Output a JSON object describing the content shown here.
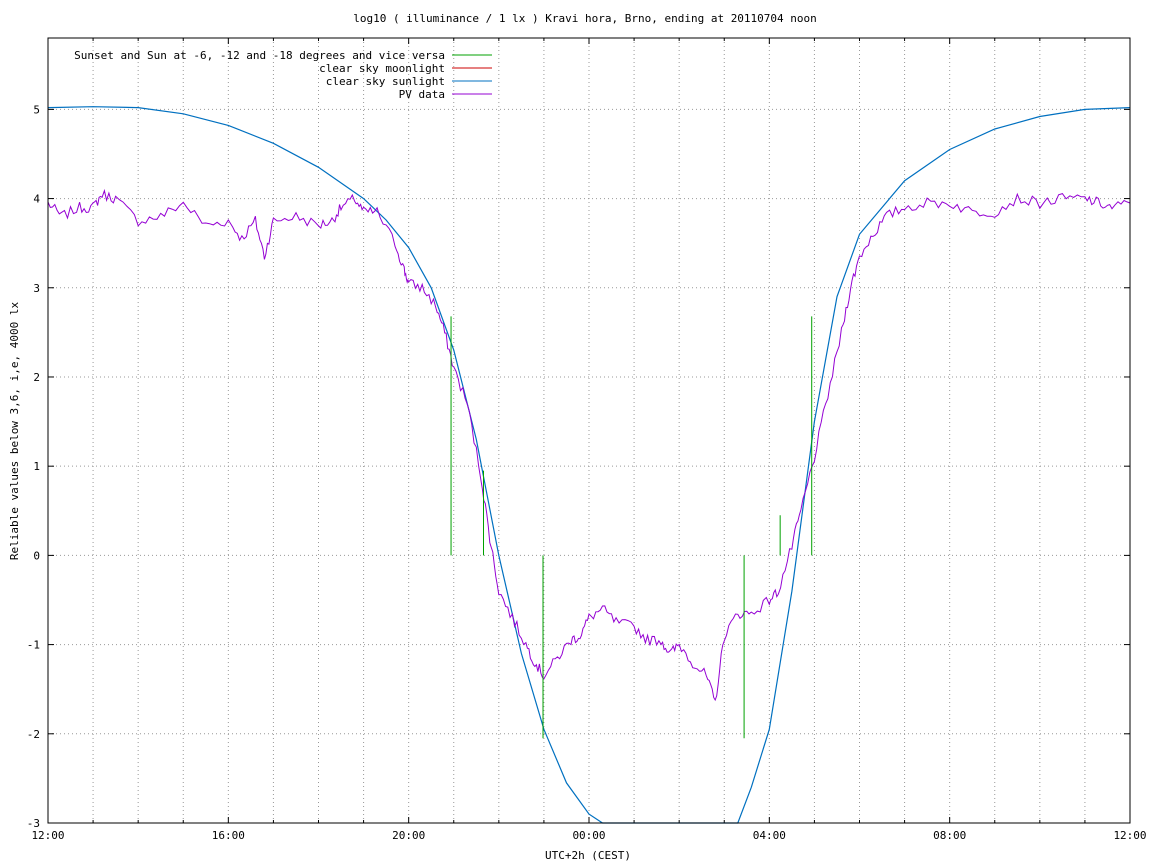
{
  "chart_data": {
    "type": "line",
    "title": "log10 ( illuminance / 1 lx ) Kravi hora, Brno, ending at 20110704 noon",
    "xlabel": "UTC+2h (CEST)",
    "ylabel": "Reliable values below 3,6, i,e, 4000 lx",
    "xlim_hours": [
      12,
      36
    ],
    "ylim": [
      -3,
      5.8
    ],
    "grid": true,
    "legend_position": "top-left",
    "x_ticks": [
      {
        "hour": 12,
        "label": "12:00"
      },
      {
        "hour": 16,
        "label": "16:00"
      },
      {
        "hour": 20,
        "label": "20:00"
      },
      {
        "hour": 24,
        "label": "00:00"
      },
      {
        "hour": 28,
        "label": "04:00"
      },
      {
        "hour": 32,
        "label": "08:00"
      },
      {
        "hour": 36,
        "label": "12:00"
      }
    ],
    "y_ticks": [
      {
        "value": -3,
        "label": "-3"
      },
      {
        "value": -2,
        "label": "-2"
      },
      {
        "value": -1,
        "label": "-1"
      },
      {
        "value": 0,
        "label": "0"
      },
      {
        "value": 1,
        "label": "1"
      },
      {
        "value": 2,
        "label": "2"
      },
      {
        "value": 3,
        "label": "3"
      },
      {
        "value": 4,
        "label": "4"
      },
      {
        "value": 5,
        "label": "5"
      }
    ],
    "series": [
      {
        "name": "Sunset and Sun at -6, -12 and -18 degrees and vice versa",
        "color": "#00a000",
        "style": "impulses",
        "points": [
          {
            "x": 20.94,
            "y0": 0,
            "y1": 2.68
          },
          {
            "x": 21.66,
            "y0": 0,
            "y1": 0.95
          },
          {
            "x": 22.98,
            "y0": -2.05,
            "y1": 0
          },
          {
            "x": 27.44,
            "y0": -2.05,
            "y1": 0
          },
          {
            "x": 28.24,
            "y0": 0,
            "y1": 0.45
          },
          {
            "x": 28.94,
            "y0": 0,
            "y1": 2.68
          }
        ]
      },
      {
        "name": "clear sky moonlight",
        "color": "#cc0000",
        "style": "line",
        "x": [],
        "y": []
      },
      {
        "name": "clear sky sunlight",
        "color": "#0070c0",
        "style": "line",
        "x": [
          12,
          13,
          14,
          15,
          16,
          17,
          18,
          19,
          19.5,
          20,
          20.5,
          21,
          21.5,
          22,
          22.5,
          23,
          23.5,
          24,
          24.3,
          27.3,
          27.6,
          28,
          28.5,
          29,
          29.5,
          30,
          31,
          32,
          33,
          34,
          35,
          36
        ],
        "y": [
          5.02,
          5.03,
          5.02,
          4.95,
          4.82,
          4.62,
          4.35,
          4.0,
          3.76,
          3.45,
          3.0,
          2.3,
          1.3,
          0.0,
          -1.1,
          -1.95,
          -2.55,
          -2.9,
          -3.0,
          -3.0,
          -2.6,
          -1.95,
          -0.4,
          1.5,
          2.9,
          3.6,
          4.2,
          4.55,
          4.78,
          4.92,
          5.0,
          5.02
        ]
      },
      {
        "name": "PV data",
        "color": "#9400d3",
        "style": "line",
        "x": [
          12,
          12.3,
          12.7,
          13,
          13.2,
          13.5,
          14,
          14.5,
          15,
          15.5,
          16,
          16.3,
          16.6,
          16.8,
          17,
          17.5,
          18,
          18.3,
          18.5,
          18.8,
          19,
          19.3,
          19.7,
          19.9,
          20,
          20.3,
          20.6,
          20.8,
          21,
          21.3,
          21.6,
          21.8,
          22,
          22.3,
          22.6,
          22.8,
          23,
          23.3,
          23.6,
          23.8,
          24,
          24.3,
          24.6,
          25,
          25.3,
          25.6,
          25.8,
          26,
          26.3,
          26.6,
          26.8,
          27,
          27.3,
          27.6,
          28,
          28.2,
          28.5,
          28.7,
          29,
          29.3,
          29.6,
          29.8,
          30,
          30.3,
          30.6,
          31,
          31.5,
          32,
          32.5,
          33,
          33.5,
          34,
          34.5,
          35,
          35.3,
          35.6,
          36
        ],
        "y": [
          3.95,
          3.8,
          3.9,
          3.9,
          4.05,
          4.0,
          3.75,
          3.8,
          3.95,
          3.7,
          3.75,
          3.55,
          3.75,
          3.35,
          3.75,
          3.8,
          3.7,
          3.75,
          3.9,
          4.0,
          3.85,
          3.85,
          3.5,
          3.2,
          3.05,
          3.0,
          2.8,
          2.5,
          2.1,
          1.7,
          0.9,
          0.2,
          -0.4,
          -0.7,
          -1.0,
          -1.2,
          -1.35,
          -1.15,
          -0.95,
          -0.9,
          -0.7,
          -0.6,
          -0.75,
          -0.8,
          -0.95,
          -0.95,
          -1.1,
          -1.0,
          -1.2,
          -1.35,
          -1.65,
          -0.9,
          -0.65,
          -0.65,
          -0.5,
          -0.4,
          0.1,
          0.5,
          1.1,
          1.8,
          2.5,
          3.0,
          3.35,
          3.6,
          3.8,
          3.9,
          3.95,
          3.95,
          3.85,
          3.85,
          4.0,
          3.95,
          4.0,
          4.0,
          3.95,
          3.9,
          3.95
        ]
      }
    ]
  }
}
